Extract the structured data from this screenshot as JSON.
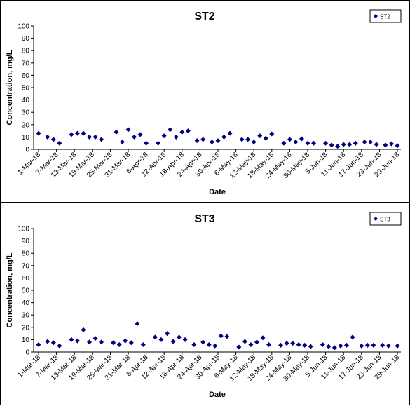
{
  "chart_data": [
    {
      "type": "scatter",
      "title": "ST2",
      "x_label": "Date",
      "y_label": "Concentration, mg/L",
      "x": [
        "2018-03-01",
        "2018-03-04",
        "2018-03-06",
        "2018-03-08",
        "2018-03-12",
        "2018-03-14",
        "2018-03-16",
        "2018-03-18",
        "2018-03-20",
        "2018-03-22",
        "2018-03-27",
        "2018-03-29",
        "2018-03-31",
        "2018-04-02",
        "2018-04-04",
        "2018-04-06",
        "2018-04-10",
        "2018-04-12",
        "2018-04-14",
        "2018-04-16",
        "2018-04-18",
        "2018-04-20",
        "2018-04-23",
        "2018-04-25",
        "2018-04-28",
        "2018-04-30",
        "2018-05-02",
        "2018-05-04",
        "2018-05-08",
        "2018-05-10",
        "2018-05-12",
        "2018-05-14",
        "2018-05-16",
        "2018-05-18",
        "2018-05-22",
        "2018-05-24",
        "2018-05-26",
        "2018-05-28",
        "2018-05-30",
        "2018-06-01",
        "2018-06-05",
        "2018-06-07",
        "2018-06-09",
        "2018-06-11",
        "2018-06-13",
        "2018-06-15",
        "2018-06-18",
        "2018-06-20",
        "2018-06-22",
        "2018-06-25",
        "2018-06-27",
        "2018-06-29"
      ],
      "series": [
        {
          "name": "ST2",
          "color": "#000080",
          "values": [
            13,
            10,
            8,
            5,
            12,
            13,
            13,
            10,
            10,
            8,
            14,
            6,
            16,
            10,
            12,
            5,
            5,
            11,
            16,
            10,
            14,
            15,
            7,
            8,
            6,
            7,
            10,
            13,
            8,
            8,
            6,
            11,
            9,
            12.5,
            5,
            8,
            6,
            8.5,
            5,
            5,
            5,
            3.5,
            2.5,
            4,
            4,
            5,
            6,
            6,
            4,
            3.5,
            4.5,
            3
          ]
        }
      ],
      "xlim": [
        "2018-03-01",
        "2018-06-29"
      ],
      "xticks": [
        {
          "value": "2018-03-01",
          "label": "1-Mar-18"
        },
        {
          "value": "2018-03-07",
          "label": "7-Mar-18"
        },
        {
          "value": "2018-03-13",
          "label": "13-Mar-18"
        },
        {
          "value": "2018-03-19",
          "label": "19-Mar-18"
        },
        {
          "value": "2018-03-25",
          "label": "25-Mar-18"
        },
        {
          "value": "2018-03-31",
          "label": "31-Mar-18"
        },
        {
          "value": "2018-04-06",
          "label": "6-Apr-18"
        },
        {
          "value": "2018-04-12",
          "label": "12-Apr-18"
        },
        {
          "value": "2018-04-18",
          "label": "18-Apr-18"
        },
        {
          "value": "2018-04-24",
          "label": "24-Apr-18"
        },
        {
          "value": "2018-04-30",
          "label": "30-Apr-18"
        },
        {
          "value": "2018-05-06",
          "label": "6-May-18"
        },
        {
          "value": "2018-05-12",
          "label": "12-May-18"
        },
        {
          "value": "2018-05-18",
          "label": "18-May-18"
        },
        {
          "value": "2018-05-24",
          "label": "24-May-18"
        },
        {
          "value": "2018-05-30",
          "label": "30-May-18"
        },
        {
          "value": "2018-06-05",
          "label": "5-Jun-18"
        },
        {
          "value": "2018-06-11",
          "label": "11-Jun-18"
        },
        {
          "value": "2018-06-17",
          "label": "17-Jun-18"
        },
        {
          "value": "2018-06-23",
          "label": "23-Jun-18"
        },
        {
          "value": "2018-06-29",
          "label": "29-Jun-18"
        }
      ],
      "ylim": [
        0,
        100
      ],
      "yticks": [
        0,
        10,
        20,
        30,
        40,
        50,
        60,
        70,
        80,
        90,
        100
      ],
      "legend": "top-right"
    },
    {
      "type": "scatter",
      "title": "ST3",
      "x_label": "Date",
      "y_label": "Concentration, mg/L",
      "x": [
        "2018-03-01",
        "2018-03-04",
        "2018-03-06",
        "2018-03-08",
        "2018-03-12",
        "2018-03-14",
        "2018-03-16",
        "2018-03-18",
        "2018-03-20",
        "2018-03-22",
        "2018-03-26",
        "2018-03-28",
        "2018-03-30",
        "2018-04-01",
        "2018-04-03",
        "2018-04-05",
        "2018-04-09",
        "2018-04-11",
        "2018-04-13",
        "2018-04-15",
        "2018-04-17",
        "2018-04-19",
        "2018-04-22",
        "2018-04-25",
        "2018-04-27",
        "2018-04-29",
        "2018-05-01",
        "2018-05-03",
        "2018-05-07",
        "2018-05-09",
        "2018-05-11",
        "2018-05-13",
        "2018-05-15",
        "2018-05-17",
        "2018-05-21",
        "2018-05-23",
        "2018-05-25",
        "2018-05-27",
        "2018-05-29",
        "2018-05-31",
        "2018-06-04",
        "2018-06-06",
        "2018-06-08",
        "2018-06-10",
        "2018-06-12",
        "2018-06-14",
        "2018-06-17",
        "2018-06-19",
        "2018-06-21",
        "2018-06-24",
        "2018-06-26",
        "2018-06-29"
      ],
      "series": [
        {
          "name": "ST3",
          "color": "#000080",
          "values": [
            6,
            8.5,
            7.5,
            5,
            10,
            9,
            18,
            8,
            11,
            8,
            7.5,
            6,
            9,
            7.5,
            23,
            6,
            12,
            10,
            15,
            8.5,
            12,
            10,
            6,
            8,
            6,
            5,
            13,
            12.5,
            4,
            8.5,
            6,
            8,
            11.5,
            6,
            5.5,
            7,
            7,
            6,
            5.5,
            4.5,
            6,
            4.5,
            3.5,
            5,
            5.5,
            12,
            5,
            5.5,
            5.5,
            5.5,
            5,
            5
          ]
        }
      ],
      "xlim": [
        "2018-03-01",
        "2018-06-29"
      ],
      "xticks": [
        {
          "value": "2018-03-01",
          "label": "1-Mar-18"
        },
        {
          "value": "2018-03-07",
          "label": "7-Mar-18"
        },
        {
          "value": "2018-03-13",
          "label": "13-Mar-18"
        },
        {
          "value": "2018-03-19",
          "label": "19-Mar-18"
        },
        {
          "value": "2018-03-25",
          "label": "25-Mar-18"
        },
        {
          "value": "2018-03-31",
          "label": "31-Mar-18"
        },
        {
          "value": "2018-04-06",
          "label": "6-Apr-18"
        },
        {
          "value": "2018-04-12",
          "label": "12-Apr-18"
        },
        {
          "value": "2018-04-18",
          "label": "18-Apr-18"
        },
        {
          "value": "2018-04-24",
          "label": "24-Apr-18"
        },
        {
          "value": "2018-04-30",
          "label": "30-Apr-18"
        },
        {
          "value": "2018-05-06",
          "label": "6-May-18"
        },
        {
          "value": "2018-05-12",
          "label": "12-May-18"
        },
        {
          "value": "2018-05-18",
          "label": "18-May-18"
        },
        {
          "value": "2018-05-24",
          "label": "24-May-18"
        },
        {
          "value": "2018-05-30",
          "label": "30-May-18"
        },
        {
          "value": "2018-06-05",
          "label": "5-Jun-18"
        },
        {
          "value": "2018-06-11",
          "label": "11-Jun-18"
        },
        {
          "value": "2018-06-17",
          "label": "17-Jun-18"
        },
        {
          "value": "2018-06-23",
          "label": "23-Jun-18"
        },
        {
          "value": "2018-06-29",
          "label": "29-Jun-18"
        }
      ],
      "ylim": [
        0,
        100
      ],
      "yticks": [
        0,
        10,
        20,
        30,
        40,
        50,
        60,
        70,
        80,
        90,
        100
      ],
      "legend": "top-right"
    }
  ]
}
